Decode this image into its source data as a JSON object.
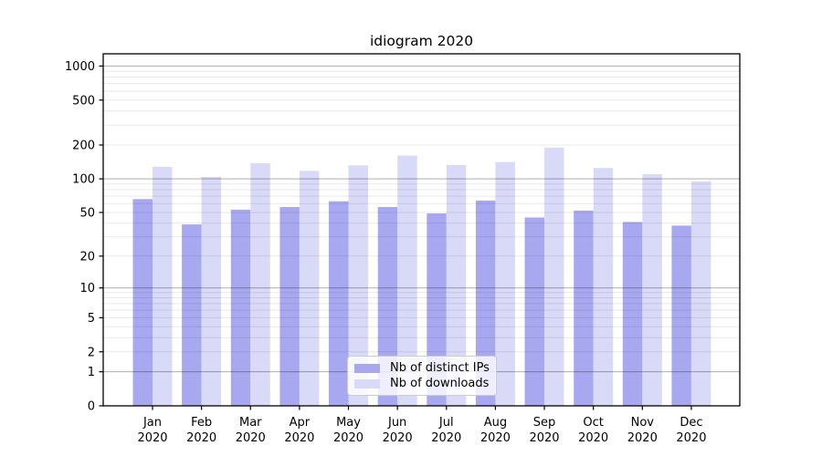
{
  "chart_data": {
    "type": "bar",
    "title": "idiogram 2020",
    "categories": [
      "Jan 2020",
      "Feb 2020",
      "Mar 2020",
      "Apr 2020",
      "May 2020",
      "Jun 2020",
      "Jul 2020",
      "Aug 2020",
      "Sep 2020",
      "Oct 2020",
      "Nov 2020",
      "Dec 2020"
    ],
    "x_tick_months": [
      "Jan",
      "Feb",
      "Mar",
      "Apr",
      "May",
      "Jun",
      "Jul",
      "Aug",
      "Sep",
      "Oct",
      "Nov",
      "Dec"
    ],
    "x_tick_year": "2020",
    "series": [
      {
        "name": "Nb of distinct IPs",
        "color": "#a8a8f0",
        "values": [
          66,
          39,
          53,
          56,
          63,
          56,
          49,
          64,
          45,
          52,
          41,
          38
        ]
      },
      {
        "name": "Nb of downloads",
        "color": "#d9d9f8",
        "values": [
          128,
          104,
          138,
          118,
          132,
          161,
          133,
          141,
          190,
          125,
          110,
          95
        ]
      }
    ],
    "xlabel": "",
    "ylabel": "",
    "yscale": "symlog",
    "yticks": [
      0,
      1,
      2,
      5,
      10,
      20,
      50,
      100,
      200,
      500,
      1000
    ],
    "ylim": [
      0,
      1283
    ],
    "grid": "horizontal, major at powers of 10, minor at 2-9 per decade, drawn above bars",
    "legend_position": "lower center inside plot"
  },
  "colors": {
    "grid_major_rgba": "rgba(0,0,0,0.28)",
    "grid_minor_rgba": "rgba(0,0,0,0.09)",
    "axis": "#000000",
    "background": "#ffffff"
  }
}
